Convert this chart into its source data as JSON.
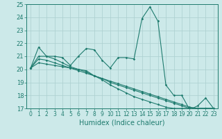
{
  "title": "",
  "xlabel": "Humidex (Indice chaleur)",
  "xlim": [
    -0.5,
    23.5
  ],
  "ylim": [
    17,
    25
  ],
  "yticks": [
    17,
    18,
    19,
    20,
    21,
    22,
    23,
    24,
    25
  ],
  "xticks": [
    0,
    1,
    2,
    3,
    4,
    5,
    6,
    7,
    8,
    9,
    10,
    11,
    12,
    13,
    14,
    15,
    16,
    17,
    18,
    19,
    20,
    21,
    22,
    23
  ],
  "bg_color": "#cce9e9",
  "grid_color": "#aacfcf",
  "line_color": "#1e7b6e",
  "line1": [
    20.1,
    21.7,
    21.0,
    21.0,
    20.9,
    20.3,
    21.0,
    21.6,
    21.5,
    20.7,
    20.1,
    20.9,
    20.9,
    20.8,
    23.9,
    24.8,
    23.7,
    18.8,
    18.0,
    18.0,
    16.9,
    17.2,
    17.8,
    17.0
  ],
  "line2": [
    20.1,
    21.0,
    21.0,
    20.8,
    20.5,
    20.2,
    20.0,
    19.8,
    19.5,
    19.3,
    19.0,
    18.8,
    18.6,
    18.4,
    18.2,
    18.0,
    17.8,
    17.6,
    17.4,
    17.2,
    17.0,
    17.0,
    17.0,
    17.0
  ],
  "line3": [
    20.1,
    20.8,
    20.7,
    20.5,
    20.3,
    20.1,
    19.9,
    19.7,
    19.5,
    19.3,
    19.1,
    18.9,
    18.7,
    18.5,
    18.3,
    18.1,
    17.9,
    17.7,
    17.5,
    17.3,
    17.1,
    17.0,
    17.0,
    17.0
  ],
  "line4": [
    20.1,
    20.5,
    20.4,
    20.3,
    20.2,
    20.1,
    20.0,
    19.9,
    19.5,
    19.2,
    18.8,
    18.5,
    18.2,
    17.9,
    17.7,
    17.5,
    17.3,
    17.1,
    17.0,
    17.0,
    17.0,
    17.0,
    17.0,
    17.0
  ]
}
